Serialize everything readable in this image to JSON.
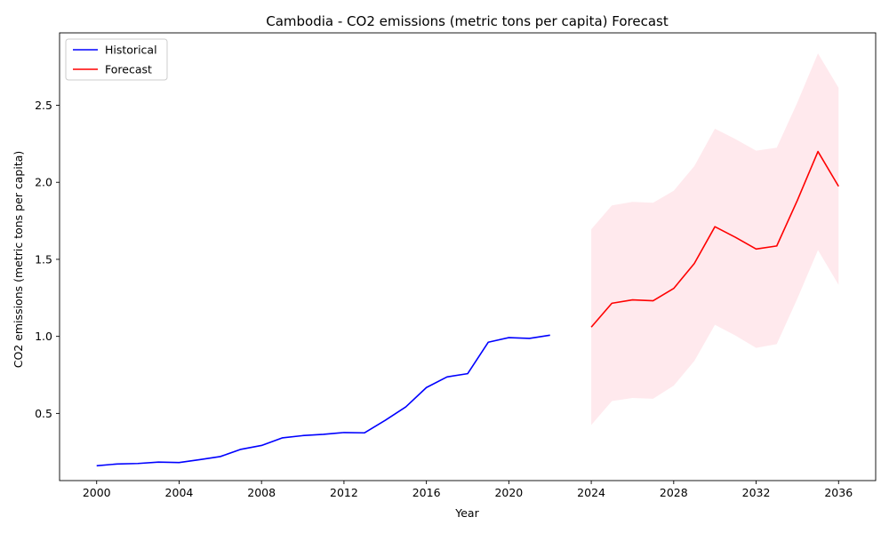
{
  "chart_data": {
    "type": "line",
    "title": "Cambodia - CO2 emissions (metric tons per capita) Forecast",
    "xlabel": "Year",
    "ylabel": "CO2 emissions (metric tons per capita)",
    "xlim": [
      1998.2,
      2037.8
    ],
    "ylim": [
      0.064,
      2.97
    ],
    "x_ticks": [
      2000,
      2004,
      2008,
      2012,
      2016,
      2020,
      2024,
      2028,
      2032,
      2036
    ],
    "y_ticks": [
      0.5,
      1.0,
      1.5,
      2.0,
      2.5
    ],
    "y_tick_labels": [
      "0.5",
      "1.0",
      "1.5",
      "2.0",
      "2.5"
    ],
    "legend_position": "top-left",
    "series": [
      {
        "name": "Historical",
        "color": "#0000ff",
        "x": [
          2000,
          2001,
          2002,
          2003,
          2004,
          2005,
          2006,
          2007,
          2008,
          2009,
          2010,
          2011,
          2012,
          2013,
          2014,
          2015,
          2016,
          2017,
          2018,
          2019,
          2020,
          2021,
          2022
        ],
        "values": [
          0.16,
          0.172,
          0.175,
          0.184,
          0.181,
          0.2,
          0.22,
          0.267,
          0.292,
          0.341,
          0.356,
          0.364,
          0.376,
          0.374,
          0.455,
          0.542,
          0.668,
          0.737,
          0.758,
          0.962,
          0.992,
          0.987,
          1.008
        ]
      },
      {
        "name": "Forecast",
        "color": "#ff0000",
        "x": [
          2024,
          2025,
          2026,
          2027,
          2028,
          2029,
          2030,
          2031,
          2032,
          2033,
          2034,
          2035,
          2036
        ],
        "values": [
          1.06,
          1.215,
          1.237,
          1.231,
          1.311,
          1.473,
          1.712,
          1.643,
          1.567,
          1.587,
          1.883,
          2.2,
          1.974
        ],
        "lower": [
          0.425,
          0.58,
          0.6,
          0.595,
          0.68,
          0.84,
          1.075,
          1.005,
          0.925,
          0.95,
          1.245,
          1.56,
          1.335
        ],
        "upper": [
          1.695,
          1.85,
          1.873,
          1.867,
          1.945,
          2.105,
          2.348,
          2.28,
          2.205,
          2.225,
          2.518,
          2.837,
          2.613
        ],
        "band_color": "#ffc0cb"
      }
    ]
  }
}
